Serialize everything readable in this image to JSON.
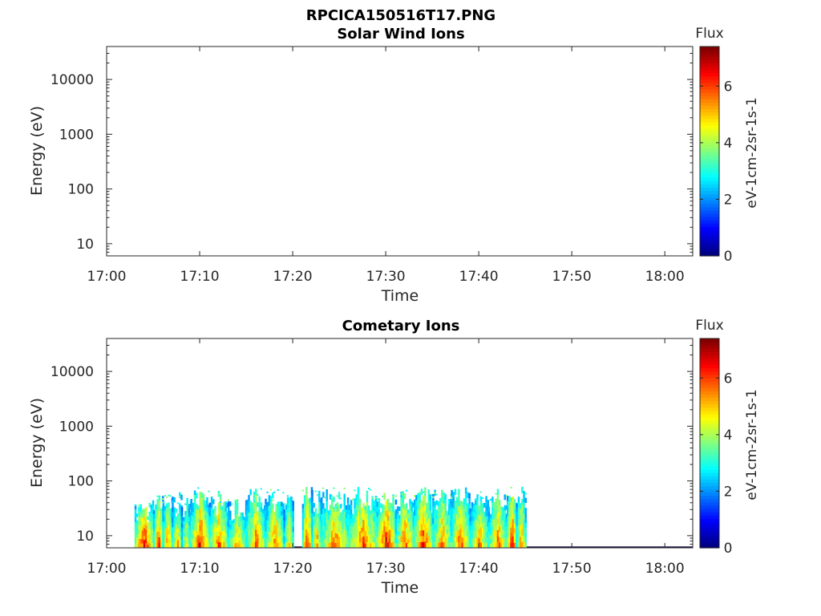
{
  "figure": {
    "title": "RPCICA150516T17.PNG"
  },
  "chart_data": [
    {
      "type": "heatmap",
      "title": "Solar Wind Ions",
      "xlabel": "Time",
      "ylabel": "Energy (eV)",
      "yscale": "log",
      "ylim": [
        6,
        40000
      ],
      "xlim": [
        "17:00",
        "18:03"
      ],
      "x_ticks": [
        "17:00",
        "17:10",
        "17:20",
        "17:30",
        "17:40",
        "17:50",
        "18:00"
      ],
      "y_ticks": [
        "10",
        "100",
        "1000",
        "10000"
      ],
      "colorbar": {
        "label": "Flux",
        "unit_label": "eV-1cm-2sr-1s-1",
        "range": [
          0,
          7.4
        ],
        "ticks": [
          "0",
          "2",
          "4",
          "6"
        ],
        "colormap": "jet"
      },
      "bursts": []
    },
    {
      "type": "heatmap",
      "title": "Cometary Ions",
      "xlabel": "Time",
      "ylabel": "Energy (eV)",
      "yscale": "log",
      "ylim": [
        6,
        40000
      ],
      "xlim": [
        "17:00",
        "18:03"
      ],
      "x_ticks": [
        "17:00",
        "17:10",
        "17:20",
        "17:30",
        "17:40",
        "17:50",
        "18:00"
      ],
      "y_ticks": [
        "10",
        "100",
        "1000",
        "10000"
      ],
      "colorbar": {
        "label": "Flux",
        "unit_label": "eV-1cm-2sr-1s-1",
        "range": [
          0,
          7.4
        ],
        "ticks": [
          "0",
          "2",
          "4",
          "6"
        ],
        "colormap": "jet"
      },
      "data_range": {
        "start": "17:03",
        "end": "17:45",
        "max_energy_eV": 80
      },
      "bursts": [
        {
          "start": "17:03",
          "end": "17:05",
          "max_energy_eV": 45,
          "peak_flux": 7.0
        },
        {
          "start": "17:05",
          "end": "17:06",
          "max_energy_eV": 70,
          "peak_flux": 6.5
        },
        {
          "start": "17:06",
          "end": "17:07",
          "max_energy_eV": 60,
          "peak_flux": 6.0
        },
        {
          "start": "17:07",
          "end": "17:08",
          "max_energy_eV": 65,
          "peak_flux": 5.8
        },
        {
          "start": "17:08",
          "end": "17:09",
          "max_energy_eV": 50,
          "peak_flux": 5.2
        },
        {
          "start": "17:09",
          "end": "17:11",
          "max_energy_eV": 78,
          "peak_flux": 6.6
        },
        {
          "start": "17:11",
          "end": "17:13",
          "max_energy_eV": 70,
          "peak_flux": 6.3
        },
        {
          "start": "17:13",
          "end": "17:15",
          "max_energy_eV": 55,
          "peak_flux": 5.6
        },
        {
          "start": "17:15",
          "end": "17:17",
          "max_energy_eV": 75,
          "peak_flux": 6.2
        },
        {
          "start": "17:17",
          "end": "17:19",
          "max_energy_eV": 75,
          "peak_flux": 6.0
        },
        {
          "start": "17:19",
          "end": "17:20",
          "max_energy_eV": 60,
          "peak_flux": 5.4
        },
        {
          "start": "17:21",
          "end": "17:22",
          "max_energy_eV": 78,
          "peak_flux": 6.8
        },
        {
          "start": "17:22",
          "end": "17:23",
          "max_energy_eV": 70,
          "peak_flux": 6.0
        },
        {
          "start": "17:23",
          "end": "17:26",
          "max_energy_eV": 78,
          "peak_flux": 6.1
        },
        {
          "start": "17:26",
          "end": "17:29",
          "max_energy_eV": 78,
          "peak_flux": 6.4
        },
        {
          "start": "17:29",
          "end": "17:31",
          "max_energy_eV": 78,
          "peak_flux": 7.0
        },
        {
          "start": "17:31",
          "end": "17:33",
          "max_energy_eV": 70,
          "peak_flux": 6.2
        },
        {
          "start": "17:33",
          "end": "17:35",
          "max_energy_eV": 78,
          "peak_flux": 6.6
        },
        {
          "start": "17:35",
          "end": "17:37",
          "max_energy_eV": 75,
          "peak_flux": 6.0
        },
        {
          "start": "17:37",
          "end": "17:39",
          "max_energy_eV": 78,
          "peak_flux": 6.3
        },
        {
          "start": "17:39",
          "end": "17:41",
          "max_energy_eV": 70,
          "peak_flux": 5.8
        },
        {
          "start": "17:41",
          "end": "17:43",
          "max_energy_eV": 75,
          "peak_flux": 6.1
        },
        {
          "start": "17:43",
          "end": "17:44",
          "max_energy_eV": 80,
          "peak_flux": 7.2
        },
        {
          "start": "17:44",
          "end": "17:45",
          "max_energy_eV": 80,
          "peak_flux": 5.9
        }
      ]
    }
  ]
}
